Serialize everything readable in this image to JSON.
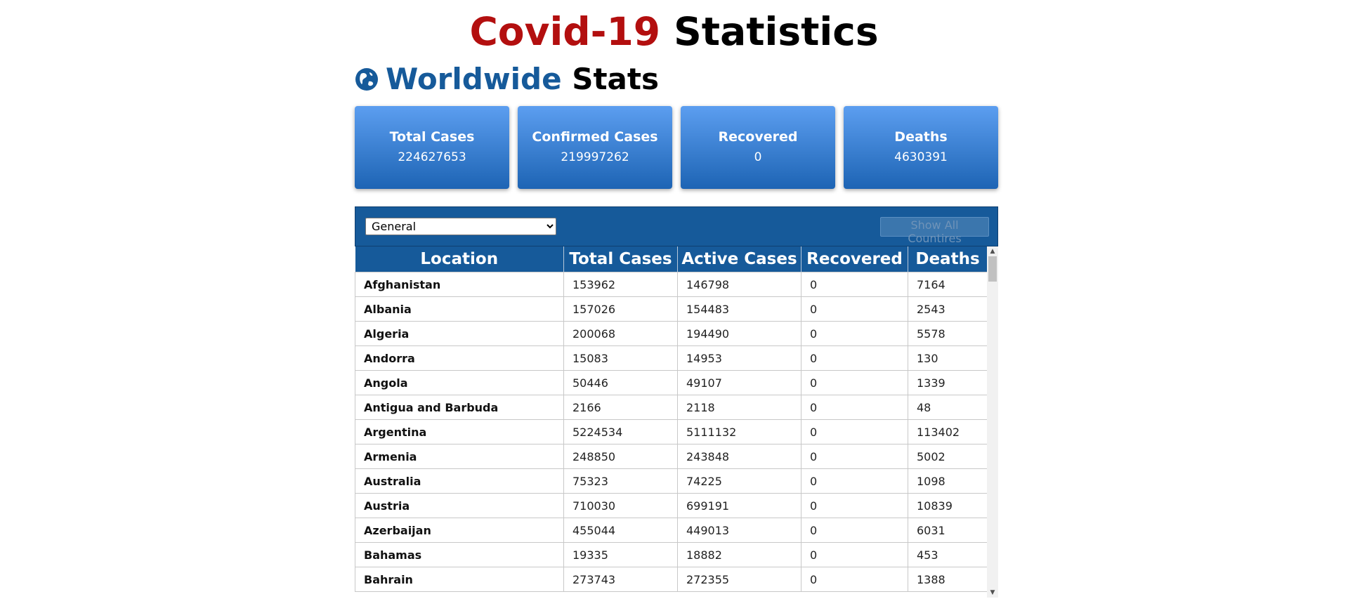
{
  "header": {
    "title_accent": "Covid-19",
    "title_rest": " Statistics"
  },
  "worldwide": {
    "icon": "globe-icon",
    "title_accent": "Worldwide",
    "title_rest": " Stats"
  },
  "cards": [
    {
      "label": "Total Cases",
      "value": "224627653"
    },
    {
      "label": "Confirmed Cases",
      "value": "219997262"
    },
    {
      "label": "Recovered",
      "value": "0"
    },
    {
      "label": "Deaths",
      "value": "4630391"
    }
  ],
  "toolbar": {
    "view_select_value": "General",
    "show_all_label": "Show All Countires"
  },
  "table": {
    "columns": [
      "Location",
      "Total Cases",
      "Active Cases",
      "Recovered",
      "Deaths"
    ],
    "rows": [
      [
        "Afghanistan",
        "153962",
        "146798",
        "0",
        "7164"
      ],
      [
        "Albania",
        "157026",
        "154483",
        "0",
        "2543"
      ],
      [
        "Algeria",
        "200068",
        "194490",
        "0",
        "5578"
      ],
      [
        "Andorra",
        "15083",
        "14953",
        "0",
        "130"
      ],
      [
        "Angola",
        "50446",
        "49107",
        "0",
        "1339"
      ],
      [
        "Antigua and Barbuda",
        "2166",
        "2118",
        "0",
        "48"
      ],
      [
        "Argentina",
        "5224534",
        "5111132",
        "0",
        "113402"
      ],
      [
        "Armenia",
        "248850",
        "243848",
        "0",
        "5002"
      ],
      [
        "Australia",
        "75323",
        "74225",
        "0",
        "1098"
      ],
      [
        "Austria",
        "710030",
        "699191",
        "0",
        "10839"
      ],
      [
        "Azerbaijan",
        "455044",
        "449013",
        "0",
        "6031"
      ],
      [
        "Bahamas",
        "19335",
        "18882",
        "0",
        "453"
      ],
      [
        "Bahrain",
        "273743",
        "272355",
        "0",
        "1388"
      ]
    ]
  },
  "colors": {
    "accent_red": "#b30f0f",
    "brand_blue": "#165a9a",
    "card_gradient_top": "#5c9ef0",
    "card_gradient_bottom": "#1d64b4"
  }
}
